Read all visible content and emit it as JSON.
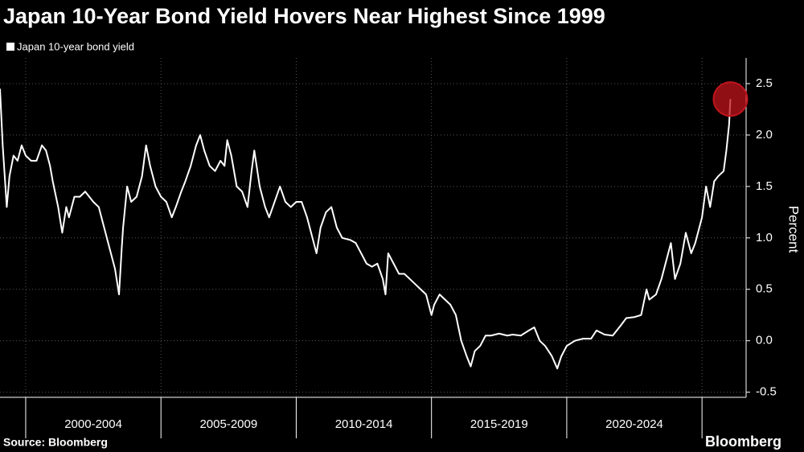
{
  "chart_data": {
    "type": "line",
    "title": "Japan 10-Year Bond Yield Hovers Near Highest Since 1999",
    "y_label": "Percent",
    "source": "Source: Bloomberg",
    "brand": "Bloomberg",
    "x": [
      1999.05,
      1999.15,
      1999.25,
      1999.3,
      1999.4,
      1999.55,
      1999.7,
      1999.85,
      2000.0,
      2000.2,
      2000.4,
      2000.6,
      2000.75,
      2000.9,
      2001.0,
      2001.2,
      2001.35,
      2001.5,
      2001.6,
      2001.8,
      2002.0,
      2002.2,
      2002.5,
      2002.7,
      2002.9,
      2003.1,
      2003.3,
      2003.45,
      2003.55,
      2003.6,
      2003.75,
      2003.9,
      2004.1,
      2004.3,
      2004.45,
      2004.6,
      2004.8,
      2005.0,
      2005.2,
      2005.4,
      2005.55,
      2005.75,
      2005.9,
      2006.1,
      2006.3,
      2006.45,
      2006.6,
      2006.8,
      2007.0,
      2007.2,
      2007.35,
      2007.45,
      2007.6,
      2007.8,
      2008.0,
      2008.2,
      2008.35,
      2008.45,
      2008.65,
      2008.85,
      2009.0,
      2009.2,
      2009.4,
      2009.6,
      2009.8,
      2010.0,
      2010.2,
      2010.4,
      2010.6,
      2010.75,
      2010.9,
      2011.1,
      2011.3,
      2011.5,
      2011.7,
      2012.0,
      2012.2,
      2012.4,
      2012.6,
      2012.8,
      2013.0,
      2013.2,
      2013.3,
      2013.4,
      2013.6,
      2013.8,
      2014.0,
      2014.2,
      2014.4,
      2014.6,
      2014.8,
      2015.0,
      2015.1,
      2015.3,
      2015.5,
      2015.7,
      2015.9,
      2016.1,
      2016.3,
      2016.45,
      2016.6,
      2016.8,
      2017.0,
      2017.2,
      2017.5,
      2017.8,
      2018.0,
      2018.3,
      2018.6,
      2018.8,
      2019.0,
      2019.2,
      2019.45,
      2019.65,
      2019.8,
      2020.0,
      2020.3,
      2020.6,
      2020.9,
      2021.1,
      2021.4,
      2021.7,
      2022.0,
      2022.2,
      2022.5,
      2022.75,
      2022.95,
      2023.05,
      2023.3,
      2023.5,
      2023.7,
      2023.85,
      2024.0,
      2024.2,
      2024.4,
      2024.6,
      2024.75,
      2025.0,
      2025.15,
      2025.3,
      2025.45,
      2025.6,
      2025.8,
      2025.9,
      2026.0,
      2026.05
    ],
    "series": [
      {
        "name": "Japan 10-year bond yield",
        "color": "#ffffff",
        "values": [
          2.45,
          1.9,
          1.5,
          1.3,
          1.6,
          1.8,
          1.75,
          1.9,
          1.8,
          1.75,
          1.75,
          1.9,
          1.85,
          1.7,
          1.55,
          1.3,
          1.05,
          1.3,
          1.2,
          1.4,
          1.4,
          1.45,
          1.35,
          1.3,
          1.1,
          0.9,
          0.7,
          0.45,
          0.9,
          1.1,
          1.5,
          1.35,
          1.4,
          1.6,
          1.9,
          1.7,
          1.5,
          1.4,
          1.35,
          1.2,
          1.3,
          1.45,
          1.55,
          1.7,
          1.9,
          2.0,
          1.85,
          1.7,
          1.65,
          1.75,
          1.7,
          1.95,
          1.8,
          1.5,
          1.45,
          1.3,
          1.65,
          1.85,
          1.5,
          1.3,
          1.2,
          1.35,
          1.5,
          1.35,
          1.3,
          1.35,
          1.35,
          1.2,
          1.0,
          0.85,
          1.1,
          1.25,
          1.3,
          1.1,
          1.0,
          0.98,
          0.95,
          0.85,
          0.75,
          0.72,
          0.75,
          0.6,
          0.45,
          0.85,
          0.75,
          0.65,
          0.65,
          0.6,
          0.55,
          0.5,
          0.45,
          0.25,
          0.35,
          0.45,
          0.4,
          0.35,
          0.25,
          0.0,
          -0.15,
          -0.25,
          -0.1,
          -0.05,
          0.05,
          0.05,
          0.07,
          0.05,
          0.06,
          0.05,
          0.1,
          0.13,
          0.0,
          -0.05,
          -0.15,
          -0.27,
          -0.15,
          -0.05,
          0.0,
          0.02,
          0.02,
          0.1,
          0.06,
          0.05,
          0.15,
          0.22,
          0.23,
          0.25,
          0.5,
          0.4,
          0.45,
          0.6,
          0.8,
          0.95,
          0.6,
          0.75,
          1.05,
          0.85,
          0.95,
          1.2,
          1.5,
          1.3,
          1.55,
          1.6,
          1.65,
          1.85,
          2.1,
          2.35
        ]
      }
    ],
    "highlight_color": "#c0141c",
    "xlim": [
      1999.05,
      2026.63
    ],
    "xticks": [
      {
        "value": 2002.5,
        "label": "2000-2004"
      },
      {
        "value": 2007.5,
        "label": "2005-2009"
      },
      {
        "value": 2012.5,
        "label": "2010-2014"
      },
      {
        "value": 2017.5,
        "label": "2015-2019"
      },
      {
        "value": 2022.5,
        "label": "2020-2024"
      }
    ],
    "ylim": [
      -0.55,
      2.75
    ],
    "yticks": [
      -0.5,
      {
        "value": 0,
        "label": "0.0"
      },
      0.5,
      {
        "value": 1,
        "label": "1.0"
      },
      1.5,
      {
        "value": 2,
        "label": "2.0"
      },
      2.5
    ],
    "grid": true
  }
}
